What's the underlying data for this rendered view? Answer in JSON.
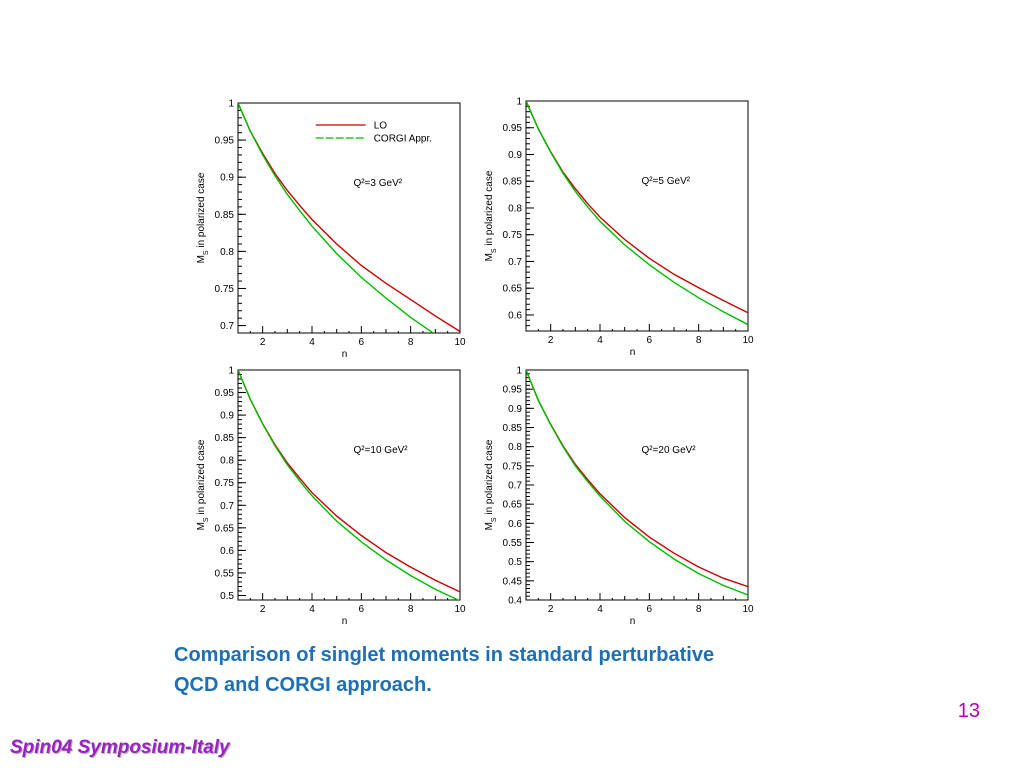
{
  "caption": {
    "line1": "Comparison of singlet moments in  standard perturbative",
    "line2": "QCD and CORGI approach."
  },
  "page_number": "13",
  "footer": "Spin04 Symposium-Italy",
  "colors": {
    "lo": "#cc0000",
    "corgi": "#00bb00",
    "caption": "#1f6fb5",
    "page_number": "#b400b4",
    "footer": "#9d1fc5"
  },
  "chart_data": [
    {
      "type": "line",
      "annotation": "Q²=3 GeV²",
      "ylabel": "M_S in polarized case",
      "xlabel": "n",
      "xlim": [
        1,
        10
      ],
      "ylim": [
        0.69,
        1.0
      ],
      "x_ticks": [
        "2",
        "4",
        "6",
        "8",
        "10"
      ],
      "y_ticks": [
        "0.7",
        "0.75",
        "0.8",
        "0.85",
        "0.9",
        "0.95",
        "1"
      ],
      "legend": {
        "entries": [
          "LO",
          "CORGI Appr."
        ],
        "position": "top-right"
      },
      "series": [
        {
          "name": "LO",
          "x": [
            1,
            1.5,
            2,
            2.5,
            3,
            3.5,
            4,
            5,
            6,
            7,
            8,
            9,
            10
          ],
          "y": [
            1.0,
            0.962,
            0.932,
            0.905,
            0.882,
            0.862,
            0.843,
            0.81,
            0.781,
            0.757,
            0.735,
            0.713,
            0.692
          ]
        },
        {
          "name": "CORGI Appr.",
          "x": [
            1,
            1.5,
            2,
            2.5,
            3,
            3.5,
            4,
            5,
            6,
            7,
            8,
            9
          ],
          "y": [
            1.0,
            0.962,
            0.93,
            0.902,
            0.877,
            0.855,
            0.834,
            0.797,
            0.765,
            0.737,
            0.711,
            0.688
          ]
        }
      ]
    },
    {
      "type": "line",
      "annotation": "Q²=5 GeV²",
      "ylabel": "M_S in polarized case",
      "xlabel": "n",
      "xlim": [
        1,
        10
      ],
      "ylim": [
        0.57,
        1.0
      ],
      "x_ticks": [
        "2",
        "4",
        "6",
        "8",
        "10"
      ],
      "y_ticks": [
        "0.6",
        "0.65",
        "0.7",
        "0.75",
        "0.8",
        "0.85",
        "0.9",
        "0.95",
        "1"
      ],
      "series": [
        {
          "name": "LO",
          "x": [
            1,
            1.5,
            2,
            2.5,
            3,
            3.5,
            4,
            5,
            6,
            7,
            8,
            9,
            10
          ],
          "y": [
            1.0,
            0.948,
            0.905,
            0.867,
            0.836,
            0.808,
            0.783,
            0.741,
            0.706,
            0.676,
            0.651,
            0.627,
            0.604
          ]
        },
        {
          "name": "CORGI Appr.",
          "x": [
            1,
            1.5,
            2,
            2.5,
            3,
            3.5,
            4,
            5,
            6,
            7,
            8,
            9,
            10
          ],
          "y": [
            1.0,
            0.948,
            0.904,
            0.865,
            0.831,
            0.802,
            0.775,
            0.731,
            0.694,
            0.661,
            0.632,
            0.606,
            0.582
          ]
        }
      ]
    },
    {
      "type": "line",
      "annotation": "Q²=10 GeV²",
      "ylabel": "M_S in polarized case",
      "xlabel": "n",
      "xlim": [
        1,
        10
      ],
      "ylim": [
        0.49,
        1.0
      ],
      "x_ticks": [
        "2",
        "4",
        "6",
        "8",
        "10"
      ],
      "y_ticks": [
        "0.5",
        "0.55",
        "0.6",
        "0.65",
        "0.7",
        "0.75",
        "0.8",
        "0.85",
        "0.9",
        "0.95",
        "1"
      ],
      "series": [
        {
          "name": "LO",
          "x": [
            1,
            1.5,
            2,
            2.5,
            3,
            3.5,
            4,
            5,
            6,
            7,
            8,
            9,
            10
          ],
          "y": [
            1.0,
            0.935,
            0.881,
            0.834,
            0.794,
            0.76,
            0.728,
            0.676,
            0.633,
            0.595,
            0.563,
            0.534,
            0.508
          ]
        },
        {
          "name": "CORGI Appr.",
          "x": [
            1,
            1.5,
            2,
            2.5,
            3,
            3.5,
            4,
            5,
            6,
            7,
            8,
            9,
            10
          ],
          "y": [
            1.0,
            0.935,
            0.88,
            0.832,
            0.79,
            0.754,
            0.721,
            0.665,
            0.619,
            0.579,
            0.544,
            0.514,
            0.488
          ]
        }
      ]
    },
    {
      "type": "line",
      "annotation": "Q²=20 GeV²",
      "ylabel": "M_S in polarized case",
      "xlabel": "n",
      "xlim": [
        1,
        10
      ],
      "ylim": [
        0.4,
        1.0
      ],
      "x_ticks": [
        "2",
        "4",
        "6",
        "8",
        "10"
      ],
      "y_ticks": [
        "0.4",
        "0.45",
        "0.5",
        "0.55",
        "0.6",
        "0.65",
        "0.7",
        "0.75",
        "0.8",
        "0.85",
        "0.9",
        "0.95",
        "1"
      ],
      "series": [
        {
          "name": "LO",
          "x": [
            1,
            1.5,
            2,
            2.5,
            3,
            3.5,
            4,
            5,
            6,
            7,
            8,
            9,
            10
          ],
          "y": [
            1.0,
            0.921,
            0.858,
            0.802,
            0.754,
            0.714,
            0.677,
            0.615,
            0.564,
            0.522,
            0.486,
            0.457,
            0.435
          ]
        },
        {
          "name": "CORGI Appr.",
          "x": [
            1,
            1.5,
            2,
            2.5,
            3,
            3.5,
            4,
            5,
            6,
            7,
            8,
            9,
            10
          ],
          "y": [
            1.0,
            0.921,
            0.857,
            0.8,
            0.75,
            0.709,
            0.671,
            0.605,
            0.552,
            0.507,
            0.469,
            0.438,
            0.413
          ]
        }
      ]
    }
  ]
}
